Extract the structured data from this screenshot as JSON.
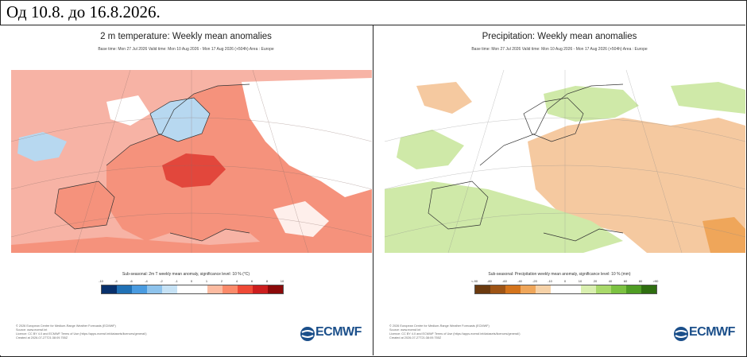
{
  "header": {
    "title": "Од 10.8. до 16.8.2026."
  },
  "panels": [
    {
      "title": "2 m temperature: Weekly mean anomalies",
      "subtitle": "Base time: Mon 27 Jul 2026 Valid time: Mon 10 Aug 2026 - Mon 17 Aug 2026 (+504h) Area : Europe",
      "legend_title": "Sub-seasonal: 2m T weekly mean anomaly, significance level: 10 % (°C)",
      "legend_ticks": [
        "-10",
        "-8",
        "-6",
        "-4",
        "-2",
        "-1",
        "0",
        "1",
        "2",
        "4",
        "6",
        "8",
        "10"
      ],
      "legend_colors": [
        "#08306b",
        "#2171b5",
        "#4a9be0",
        "#8ec3ec",
        "#c6e2f5",
        "#ffffff",
        "#ffffff",
        "#fcbba1",
        "#fb8a6a",
        "#ef4a36",
        "#cc1e1e",
        "#8b0a0a"
      ],
      "footer": [
        "© 2026 European Centre for Medium-Range Weather Forecasts (ECMWF)",
        "Source: www.ecmwf.int",
        "Licence: CC BY 4.0 and ECMWF Terms of Use (https://apps.ecmwf.int/datasets/licences/general/)",
        "Created at 2026-07-27T21:38:09.755Z"
      ],
      "logo": "ECMWF",
      "colors": {
        "sea": "#f7b3a5",
        "land": "#f5927c",
        "hot": "#e2473c",
        "cold": "#b7d8f0",
        "white": "#ffffff"
      }
    },
    {
      "title": "Precipitation: Weekly mean anomalies",
      "subtitle": "Base time: Mon 27 Jul 2026 Valid time: Mon 10 Aug 2026 - Mon 17 Aug 2026 (+504h) Area : Europe",
      "legend_title": "Sub-seasonal: Precipitation weekly mean anomaly, significance level: 10 % (mm)",
      "legend_ticks": [
        "<-90",
        "-80",
        "-60",
        "-40",
        "-20",
        "-10",
        "0",
        "10",
        "20",
        "40",
        "60",
        "80",
        ">90"
      ],
      "legend_colors": [
        "#6b3a0f",
        "#9e5415",
        "#d4741c",
        "#efa65a",
        "#f6d2a8",
        "#ffffff",
        "#ffffff",
        "#d9efb0",
        "#a9d96b",
        "#7cc242",
        "#4f9d24",
        "#2f6e10"
      ],
      "footer": [
        "© 2026 European Centre for Medium-Range Weather Forecasts (ECMWF)",
        "Source: www.ecmwf.int",
        "Licence: CC BY 4.0 and ECMWF Terms of Use (https://apps.ecmwf.int/datasets/licences/general/)",
        "Created at 2026-07-27T21:38:09.755Z"
      ],
      "logo": "ECMWF",
      "colors": {
        "dry": "#f5c9a0",
        "wet": "#cfe9a8",
        "white": "#ffffff"
      }
    }
  ]
}
